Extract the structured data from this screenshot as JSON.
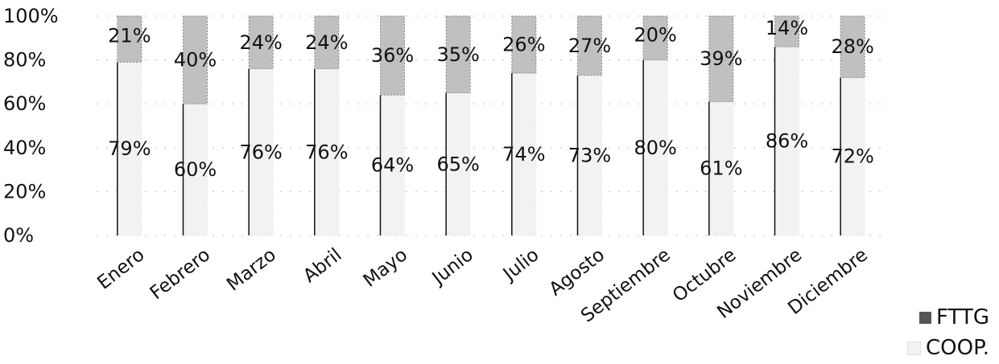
{
  "chart_data": {
    "type": "bar",
    "stacked": true,
    "percent": true,
    "categories": [
      "Enero",
      "Febrero",
      "Marzo",
      "Abril",
      "Mayo",
      "Junio",
      "Julio",
      "Agosto",
      "Septiembre",
      "Octubre",
      "Noviembre",
      "Diciembre"
    ],
    "series": [
      {
        "name": "COOP.",
        "values": [
          79,
          60,
          76,
          76,
          64,
          65,
          74,
          73,
          80,
          61,
          86,
          72
        ],
        "labels": [
          "79%",
          "60%",
          "76%",
          "76%",
          "64%",
          "65%",
          "74%",
          "73%",
          "80%",
          "61%",
          "86%",
          "72%"
        ],
        "color": "#f2f2f2"
      },
      {
        "name": "FTTG",
        "values": [
          21,
          40,
          24,
          24,
          36,
          35,
          26,
          27,
          20,
          39,
          14,
          28
        ],
        "labels": [
          "21%",
          "40%",
          "24%",
          "24%",
          "36%",
          "35%",
          "26%",
          "27%",
          "20%",
          "39%",
          "14%",
          "28%"
        ],
        "color": "#8c8c8c"
      }
    ],
    "y_ticks": [
      "0%",
      "20%",
      "40%",
      "60%",
      "80%",
      "100%"
    ],
    "ylim": [
      0,
      100
    ],
    "grid": true,
    "legend_position": "bottom-right",
    "title": "",
    "xlabel": "",
    "ylabel": ""
  },
  "legend": {
    "fttg_label": "FTTG",
    "coop_label": "COOP."
  }
}
